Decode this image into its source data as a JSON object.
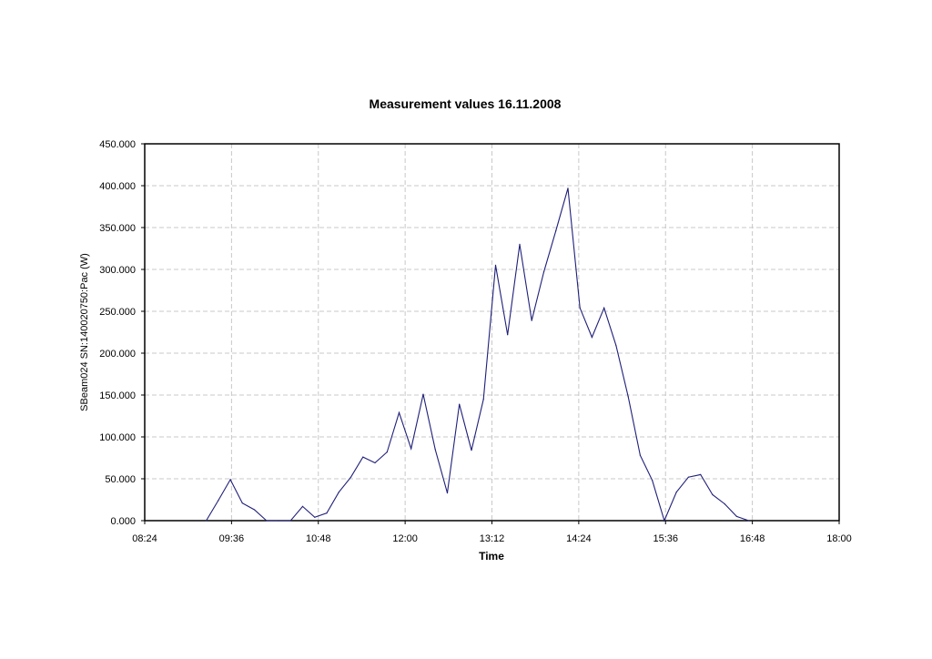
{
  "chart_data": {
    "type": "line",
    "title": "Measurement values 16.11.2008",
    "xlabel": "Time",
    "ylabel": "SBeam024 SN:140020750:Pac (W)",
    "x_ticks": [
      "08:24",
      "09:36",
      "10:48",
      "12:00",
      "13:12",
      "14:24",
      "15:36",
      "16:48",
      "18:00"
    ],
    "y_ticks": [
      "0.000",
      "50.000",
      "100.000",
      "150.000",
      "200.000",
      "250.000",
      "300.000",
      "350.000",
      "400.000",
      "450.000"
    ],
    "xlim": [
      "08:24",
      "18:00"
    ],
    "ylim": [
      0,
      450
    ],
    "grid": true,
    "series_color": "#1f1f7a",
    "series": [
      {
        "x": [
          "09:15",
          "09:25",
          "09:35",
          "09:45",
          "09:55",
          "10:05",
          "10:15",
          "10:25",
          "10:35",
          "10:45",
          "10:55",
          "11:05",
          "11:15",
          "11:25",
          "11:35",
          "11:45",
          "11:55",
          "12:05",
          "12:15",
          "12:25",
          "12:35",
          "12:45",
          "12:55",
          "13:05",
          "13:15",
          "13:25",
          "13:35",
          "13:45",
          "13:55",
          "14:05",
          "14:15",
          "14:25",
          "14:35",
          "14:45",
          "14:55",
          "15:05",
          "15:15",
          "15:25",
          "15:35",
          "15:45",
          "15:55",
          "16:05",
          "16:15",
          "16:25",
          "16:35",
          "16:45"
        ],
        "values": [
          0,
          24,
          49,
          21,
          13,
          0,
          0,
          0,
          17,
          4,
          9,
          34,
          52,
          76,
          69,
          82,
          129,
          86,
          151,
          85,
          33,
          139,
          84,
          145,
          305,
          222,
          330,
          239,
          297,
          346,
          397,
          254,
          219,
          254,
          209,
          148,
          78,
          48,
          0,
          34,
          52,
          55,
          31,
          20,
          5,
          0
        ]
      }
    ]
  }
}
